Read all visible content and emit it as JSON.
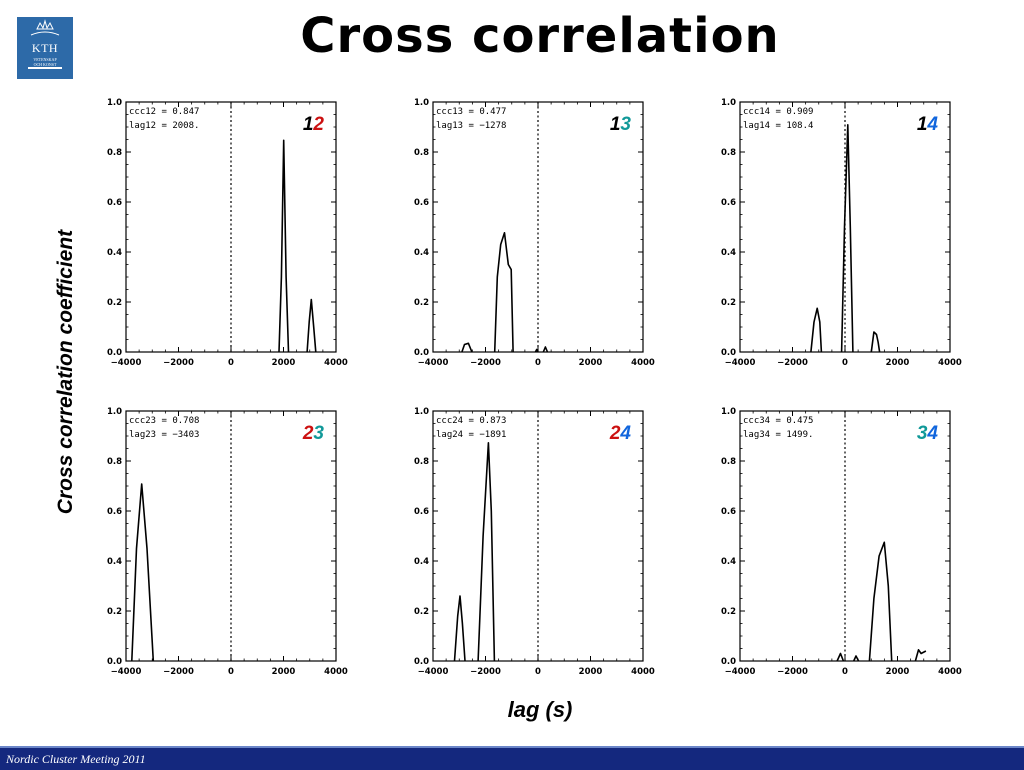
{
  "title": "Cross correlation",
  "y_axis_label": "Cross correlation coefficient",
  "x_axis_label": "lag (s)",
  "footer": "Nordic Cluster Meeting 2011",
  "logo": {
    "text": "KTH",
    "sub1": "VETENSKAP",
    "sub2": "OCH KONST"
  },
  "colors": {
    "digit_1": "#000000",
    "digit_2": "#cc1111",
    "digit_3": "#119999",
    "digit_4": "#1166dd",
    "footer_bg": "#14287e",
    "logo_bg": "#2d6aa8"
  },
  "chart_data": [
    {
      "type": "line",
      "pair": [
        "1",
        "2"
      ],
      "xlim": [
        -4000,
        4000
      ],
      "ylim": [
        0,
        1
      ],
      "x_ticks": [
        "-4000",
        "-2000",
        "0",
        "2000",
        "4000"
      ],
      "y_ticks": [
        "0.0",
        "0.2",
        "0.4",
        "0.6",
        "0.8",
        "1.0"
      ],
      "annotations": [
        "ccc12 = 0.847",
        "lag12 = 2008."
      ],
      "reference_line_x": 0,
      "segments": [
        [
          [
            1830,
            0
          ],
          [
            1920,
            0.3
          ],
          [
            2008,
            0.847
          ],
          [
            2100,
            0.3
          ],
          [
            2190,
            0
          ]
        ],
        [
          [
            2900,
            0
          ],
          [
            2980,
            0.12
          ],
          [
            3060,
            0.21
          ],
          [
            3150,
            0.1
          ],
          [
            3230,
            0
          ]
        ]
      ]
    },
    {
      "type": "line",
      "pair": [
        "1",
        "3"
      ],
      "xlim": [
        -4000,
        4000
      ],
      "ylim": [
        0,
        1
      ],
      "x_ticks": [
        "-4000",
        "-2000",
        "0",
        "2000",
        "4000"
      ],
      "y_ticks": [
        "0.0",
        "0.2",
        "0.4",
        "0.6",
        "0.8",
        "1.0"
      ],
      "annotations": [
        "ccc13 = 0.477",
        "lag13 = -1278"
      ],
      "reference_line_x": 0,
      "segments": [
        [
          [
            -2900,
            0
          ],
          [
            -2800,
            0.03
          ],
          [
            -2650,
            0.035
          ],
          [
            -2520,
            0
          ]
        ],
        [
          [
            -1650,
            0
          ],
          [
            -1550,
            0.3
          ],
          [
            -1420,
            0.43
          ],
          [
            -1278,
            0.477
          ],
          [
            -1130,
            0.35
          ],
          [
            -1020,
            0.33
          ],
          [
            -950,
            0
          ]
        ],
        [
          [
            -100,
            0
          ],
          [
            -50,
            0.01
          ],
          [
            0,
            0
          ]
        ],
        [
          [
            200,
            0
          ],
          [
            280,
            0.02
          ],
          [
            360,
            0
          ]
        ]
      ]
    },
    {
      "type": "line",
      "pair": [
        "1",
        "4"
      ],
      "xlim": [
        -4000,
        4000
      ],
      "ylim": [
        0,
        1
      ],
      "x_ticks": [
        "-4000",
        "-2000",
        "0",
        "2000",
        "4000"
      ],
      "y_ticks": [
        "0.0",
        "0.2",
        "0.4",
        "0.6",
        "0.8",
        "1.0"
      ],
      "annotations": [
        "ccc14 = 0.909",
        "lag14 = 108.4"
      ],
      "reference_line_x": 0,
      "segments": [
        [
          [
            -1300,
            0
          ],
          [
            -1180,
            0.12
          ],
          [
            -1060,
            0.175
          ],
          [
            -960,
            0.12
          ],
          [
            -900,
            0
          ]
        ],
        [
          [
            -130,
            0
          ],
          [
            -20,
            0.5
          ],
          [
            108,
            0.909
          ],
          [
            200,
            0.5
          ],
          [
            300,
            0
          ]
        ],
        [
          [
            1000,
            0
          ],
          [
            1100,
            0.08
          ],
          [
            1200,
            0.07
          ],
          [
            1260,
            0.04
          ],
          [
            1320,
            0
          ]
        ]
      ]
    },
    {
      "type": "line",
      "pair": [
        "2",
        "3"
      ],
      "xlim": [
        -4000,
        4000
      ],
      "ylim": [
        0,
        1
      ],
      "x_ticks": [
        "-4000",
        "-2000",
        "0",
        "2000",
        "4000"
      ],
      "y_ticks": [
        "0.0",
        "0.2",
        "0.4",
        "0.6",
        "0.8",
        "1.0"
      ],
      "annotations": [
        "ccc23 = 0.708",
        "lag23 = -3403"
      ],
      "reference_line_x": 0,
      "segments": [
        [
          [
            -3780,
            0
          ],
          [
            -3600,
            0.45
          ],
          [
            -3403,
            0.708
          ],
          [
            -3200,
            0.45
          ],
          [
            -2960,
            0
          ]
        ]
      ]
    },
    {
      "type": "line",
      "pair": [
        "2",
        "4"
      ],
      "xlim": [
        -4000,
        4000
      ],
      "ylim": [
        0,
        1
      ],
      "x_ticks": [
        "-4000",
        "-2000",
        "0",
        "2000",
        "4000"
      ],
      "y_ticks": [
        "0.0",
        "0.2",
        "0.4",
        "0.6",
        "0.8",
        "1.0"
      ],
      "annotations": [
        "ccc24 = 0.873",
        "lag24 = -1891"
      ],
      "reference_line_x": 0,
      "segments": [
        [
          [
            -3180,
            0
          ],
          [
            -3060,
            0.18
          ],
          [
            -2970,
            0.26
          ],
          [
            -2880,
            0.15
          ],
          [
            -2780,
            0
          ]
        ],
        [
          [
            -2280,
            0
          ],
          [
            -2090,
            0.5
          ],
          [
            -1891,
            0.873
          ],
          [
            -1780,
            0.6
          ],
          [
            -1660,
            0
          ]
        ]
      ]
    },
    {
      "type": "line",
      "pair": [
        "3",
        "4"
      ],
      "xlim": [
        -4000,
        4000
      ],
      "ylim": [
        0,
        1
      ],
      "x_ticks": [
        "-4000",
        "-2000",
        "0",
        "2000",
        "4000"
      ],
      "y_ticks": [
        "0.0",
        "0.2",
        "0.4",
        "0.6",
        "0.8",
        "1.0"
      ],
      "annotations": [
        "ccc34 = 0.475",
        "lag34 = 1499."
      ],
      "reference_line_x": 0,
      "segments": [
        [
          [
            -300,
            0
          ],
          [
            -170,
            0.03
          ],
          [
            -60,
            0
          ]
        ],
        [
          [
            330,
            0
          ],
          [
            420,
            0.02
          ],
          [
            520,
            0
          ]
        ],
        [
          [
            930,
            0
          ],
          [
            1100,
            0.25
          ],
          [
            1300,
            0.42
          ],
          [
            1499,
            0.475
          ],
          [
            1650,
            0.3
          ],
          [
            1780,
            0
          ]
        ],
        [
          [
            2680,
            0
          ],
          [
            2800,
            0.045
          ],
          [
            2900,
            0.03
          ],
          [
            3080,
            0.04
          ]
        ]
      ]
    }
  ]
}
